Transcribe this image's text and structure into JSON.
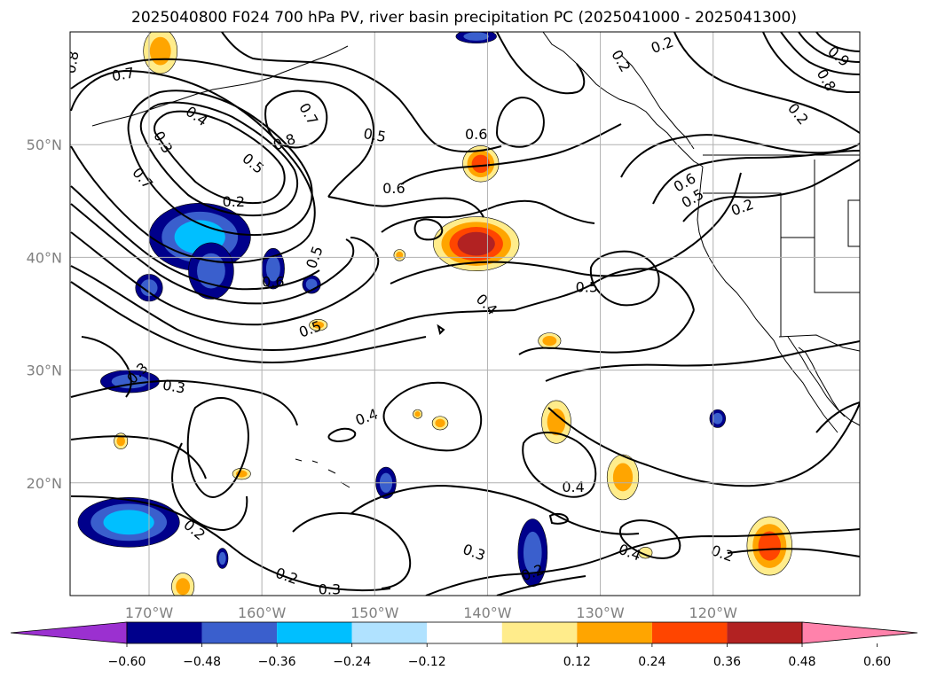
{
  "title": "2025040800 F024 700 hPa PV, river basin precipitation PC (2025041000 - 2025041300)",
  "map": {
    "lon_range": [
      -177,
      -107
    ],
    "lat_range": [
      10,
      60
    ],
    "lon_ticks": [
      {
        "lon": -170,
        "label": "170°W"
      },
      {
        "lon": -160,
        "label": "160°W"
      },
      {
        "lon": -150,
        "label": "150°W"
      },
      {
        "lon": -140,
        "label": "140°W"
      },
      {
        "lon": -130,
        "label": "130°W"
      },
      {
        "lon": -120,
        "label": "120°W"
      }
    ],
    "lat_ticks": [
      {
        "lat": 50,
        "label": "50°N"
      },
      {
        "lat": 40,
        "label": "40°N"
      },
      {
        "lat": 30,
        "label": "30°N"
      },
      {
        "lat": 20,
        "label": "20°N"
      }
    ],
    "grid": true
  },
  "colorbar": {
    "orientation": "horizontal",
    "extend": "both",
    "colors": [
      "#9b30d0",
      "#00008b",
      "#3a5fcd",
      "#00bfff",
      "#b0e2ff",
      "#ffffff",
      "#ffec8b",
      "#ffa500",
      "#ff4500",
      "#b22222",
      "#ff82ab"
    ],
    "ticks": [
      {
        "value": -0.6,
        "label": "−0.60"
      },
      {
        "value": -0.48,
        "label": "−0.48"
      },
      {
        "value": -0.36,
        "label": "−0.36"
      },
      {
        "value": -0.24,
        "label": "−0.24"
      },
      {
        "value": -0.12,
        "label": "−0.12"
      },
      {
        "value": 0.12,
        "label": "0.12"
      },
      {
        "value": 0.24,
        "label": "0.24"
      },
      {
        "value": 0.36,
        "label": "0.36"
      },
      {
        "value": 0.48,
        "label": "0.48"
      },
      {
        "value": 0.6,
        "label": "0.60"
      }
    ]
  },
  "contour_labels": [
    {
      "lon": -176.8,
      "lat": 57.3,
      "text": "0.8",
      "angle": -80
    },
    {
      "lon": -172.3,
      "lat": 56.2,
      "text": "0.7",
      "angle": -10
    },
    {
      "lon": -165.8,
      "lat": 52.5,
      "text": "0.4",
      "angle": 35
    },
    {
      "lon": -168.8,
      "lat": 50.2,
      "text": "0.3",
      "angle": 60
    },
    {
      "lon": -160.8,
      "lat": 48.3,
      "text": "0.5",
      "angle": 40
    },
    {
      "lon": -162.5,
      "lat": 44.9,
      "text": "0.2",
      "angle": 0
    },
    {
      "lon": -170.6,
      "lat": 47.0,
      "text": "0.7",
      "angle": 50
    },
    {
      "lon": -155.9,
      "lat": 52.7,
      "text": "0.7",
      "angle": 60
    },
    {
      "lon": -158.0,
      "lat": 50.2,
      "text": "0.8",
      "angle": -20
    },
    {
      "lon": -150.0,
      "lat": 50.8,
      "text": "0.5",
      "angle": 10
    },
    {
      "lon": -141.0,
      "lat": 50.9,
      "text": "0.6",
      "angle": 0
    },
    {
      "lon": -148.3,
      "lat": 46.1,
      "text": "0.6",
      "angle": 0
    },
    {
      "lon": -155.3,
      "lat": 40.0,
      "text": "0.5",
      "angle": -70
    },
    {
      "lon": -159.0,
      "lat": 37.8,
      "text": "0.6",
      "angle": 0
    },
    {
      "lon": -155.7,
      "lat": 33.6,
      "text": "0.5",
      "angle": -20
    },
    {
      "lon": -140.1,
      "lat": 35.8,
      "text": "0.4",
      "angle": 45
    },
    {
      "lon": -131.2,
      "lat": 37.3,
      "text": "0.5",
      "angle": 0
    },
    {
      "lon": -171.0,
      "lat": 29.7,
      "text": "0.3",
      "angle": -45
    },
    {
      "lon": -167.8,
      "lat": 28.5,
      "text": "0.3",
      "angle": 10
    },
    {
      "lon": -150.7,
      "lat": 25.8,
      "text": "0.4",
      "angle": -20
    },
    {
      "lon": -132.4,
      "lat": 19.6,
      "text": "0.4",
      "angle": 0
    },
    {
      "lon": -166.0,
      "lat": 15.8,
      "text": "0.2",
      "angle": 40
    },
    {
      "lon": -141.2,
      "lat": 13.8,
      "text": "0.3",
      "angle": 20
    },
    {
      "lon": -127.4,
      "lat": 13.8,
      "text": "0.4",
      "angle": 20
    },
    {
      "lon": -157.8,
      "lat": 11.7,
      "text": "0.2",
      "angle": 20
    },
    {
      "lon": -136.0,
      "lat": 12.0,
      "text": "0.2",
      "angle": -20
    },
    {
      "lon": -154.0,
      "lat": 10.5,
      "text": "0.3",
      "angle": 0
    },
    {
      "lon": -128.2,
      "lat": 57.4,
      "text": "0.2",
      "angle": 60
    },
    {
      "lon": -124.5,
      "lat": 58.8,
      "text": "0.2",
      "angle": -20
    },
    {
      "lon": -122.5,
      "lat": 46.6,
      "text": "0.6",
      "angle": -30
    },
    {
      "lon": -121.8,
      "lat": 45.2,
      "text": "0.5",
      "angle": -30
    },
    {
      "lon": -117.4,
      "lat": 44.4,
      "text": "0.2",
      "angle": -20
    },
    {
      "lon": -119.2,
      "lat": 13.7,
      "text": "0.2",
      "angle": 20
    },
    {
      "lon": -112.5,
      "lat": 52.7,
      "text": "0.2",
      "angle": 50
    },
    {
      "lon": -110.0,
      "lat": 55.7,
      "text": "0.8",
      "angle": 60
    },
    {
      "lon": -108.9,
      "lat": 57.8,
      "text": "0.9",
      "angle": 40
    }
  ],
  "precip_patches": [
    {
      "lon": -165.5,
      "lat": 41.8,
      "rlon": 4.5,
      "rlat": 3.0,
      "levels": [
        1,
        2,
        3
      ]
    },
    {
      "lon": -164.5,
      "lat": 38.8,
      "rlon": 2.0,
      "rlat": 2.5,
      "levels": [
        1,
        2
      ]
    },
    {
      "lon": -159.0,
      "lat": 39.0,
      "rlon": 1.0,
      "rlat": 1.8,
      "levels": [
        1,
        2
      ]
    },
    {
      "lon": -170.0,
      "lat": 37.3,
      "rlon": 1.2,
      "rlat": 1.2,
      "levels": [
        1,
        2
      ]
    },
    {
      "lon": -155.6,
      "lat": 37.6,
      "rlon": 0.8,
      "rlat": 0.8,
      "levels": [
        1,
        2
      ]
    },
    {
      "lon": -171.7,
      "lat": 29.0,
      "rlon": 2.6,
      "rlat": 1.0,
      "levels": [
        1,
        2
      ]
    },
    {
      "lon": -171.8,
      "lat": 16.5,
      "rlon": 4.5,
      "rlat": 2.2,
      "levels": [
        1,
        2,
        3
      ]
    },
    {
      "lon": -163.5,
      "lat": 13.3,
      "rlon": 0.5,
      "rlat": 0.9,
      "levels": [
        1,
        2
      ]
    },
    {
      "lon": -149.0,
      "lat": 20.0,
      "rlon": 0.9,
      "rlat": 1.4,
      "levels": [
        1,
        2
      ]
    },
    {
      "lon": -136.0,
      "lat": 13.8,
      "rlon": 1.3,
      "rlat": 3.0,
      "levels": [
        1,
        2
      ]
    },
    {
      "lon": -119.6,
      "lat": 25.7,
      "rlon": 0.7,
      "rlat": 0.8,
      "levels": [
        1,
        2
      ]
    },
    {
      "lon": -141.0,
      "lat": 59.6,
      "rlon": 1.8,
      "rlat": 0.6,
      "levels": [
        1,
        2
      ]
    },
    {
      "lon": -141.0,
      "lat": 41.2,
      "rlon": 3.8,
      "rlat": 2.4,
      "levels": [
        6,
        7,
        8,
        9
      ]
    },
    {
      "lon": -140.6,
      "lat": 48.3,
      "rlon": 1.6,
      "rlat": 1.6,
      "levels": [
        6,
        7,
        8
      ]
    },
    {
      "lon": -169.0,
      "lat": 58.3,
      "rlon": 1.5,
      "rlat": 2.0,
      "levels": [
        6,
        7
      ]
    },
    {
      "lon": -133.9,
      "lat": 25.4,
      "rlon": 1.3,
      "rlat": 1.9,
      "levels": [
        6,
        7
      ]
    },
    {
      "lon": -128.0,
      "lat": 20.5,
      "rlon": 1.4,
      "rlat": 2.0,
      "levels": [
        6,
        7
      ]
    },
    {
      "lon": -115.0,
      "lat": 14.4,
      "rlon": 2.0,
      "rlat": 2.6,
      "levels": [
        6,
        7,
        8
      ]
    },
    {
      "lon": -134.5,
      "lat": 32.6,
      "rlon": 1.0,
      "rlat": 0.7,
      "levels": [
        6,
        7
      ]
    },
    {
      "lon": -155.0,
      "lat": 34.0,
      "rlon": 0.8,
      "rlat": 0.5,
      "levels": [
        6,
        7
      ]
    },
    {
      "lon": -144.2,
      "lat": 25.3,
      "rlon": 0.7,
      "rlat": 0.6,
      "levels": [
        6,
        7
      ]
    },
    {
      "lon": -172.5,
      "lat": 23.7,
      "rlon": 0.6,
      "rlat": 0.7,
      "levels": [
        6,
        7
      ]
    },
    {
      "lon": -161.8,
      "lat": 20.8,
      "rlon": 0.8,
      "rlat": 0.5,
      "levels": [
        6,
        7
      ]
    },
    {
      "lon": -147.8,
      "lat": 40.2,
      "rlon": 0.5,
      "rlat": 0.5,
      "levels": [
        6,
        7
      ]
    },
    {
      "lon": -146.2,
      "lat": 26.1,
      "rlon": 0.4,
      "rlat": 0.4,
      "levels": [
        6,
        7
      ]
    },
    {
      "lon": -126.0,
      "lat": 13.8,
      "rlon": 0.6,
      "rlat": 0.5,
      "levels": [
        6
      ]
    },
    {
      "lon": -167.0,
      "lat": 10.8,
      "rlon": 1.0,
      "rlat": 1.2,
      "levels": [
        6,
        7
      ]
    }
  ]
}
